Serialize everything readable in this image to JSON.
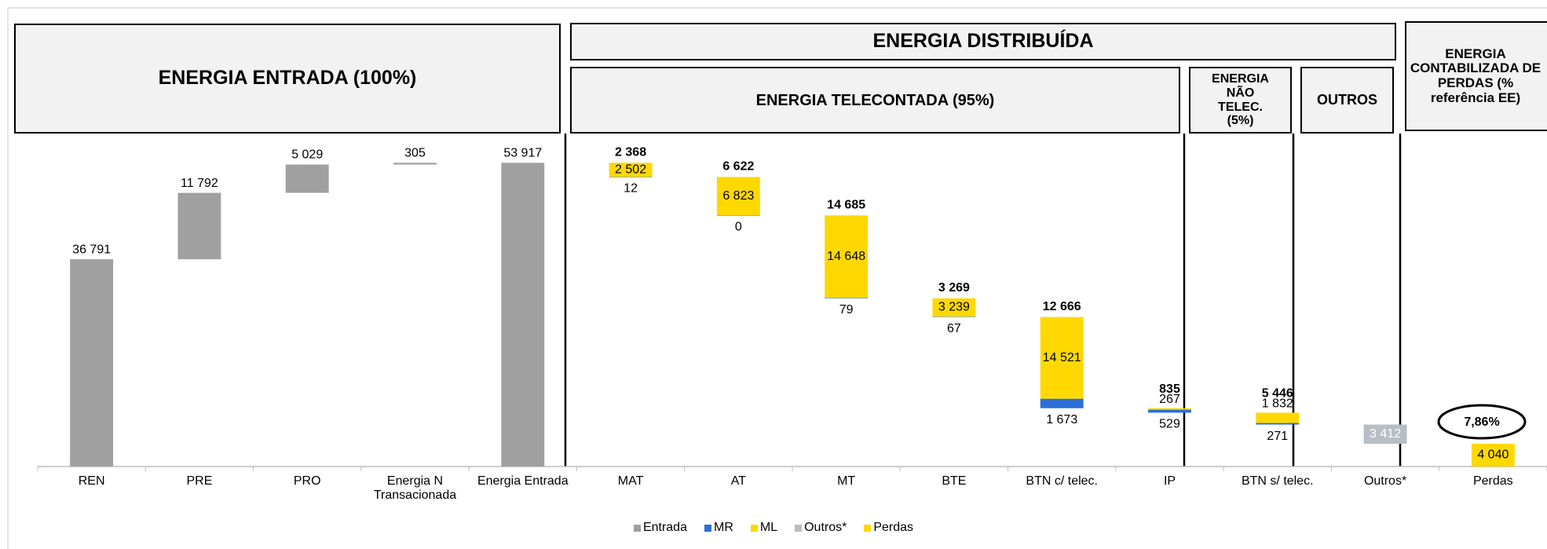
{
  "chart_data": {
    "type": "waterfall",
    "panel_titles": [
      "ENERGIA ENTRADA (100%)",
      "ENERGIA DISTRIBUÍDA",
      "ENERGIA TELECONTADA (95%)",
      "ENERGIA NÃO TELEC. (5%)",
      "OUTROS",
      "ENERGIA CONTABILIZADA DE PERDAS (% referência EE)"
    ],
    "categories": [
      "REN",
      "PRE",
      "PRO",
      "Energia N Transacionada",
      "Energia Entrada",
      "MAT",
      "AT",
      "MT",
      "BTE",
      "BTN c/ telec.",
      "IP",
      "BTN s/ telec.",
      "Outros*",
      "Perdas"
    ],
    "ylim": [
      0,
      58000
    ],
    "series": [
      {
        "name": "Entrada",
        "color": "#a0a0a0",
        "values": [
          36791,
          11792,
          5029,
          305,
          53917,
          null,
          null,
          null,
          null,
          null,
          null,
          null,
          null,
          null
        ],
        "value_labels": [
          "36 791",
          "11 792",
          "5 029",
          "305",
          "53 917",
          null,
          null,
          null,
          null,
          null,
          null,
          null,
          null,
          null
        ]
      },
      {
        "name": "MR",
        "color": "#2b6fd6",
        "values": [
          null,
          null,
          null,
          null,
          null,
          12,
          0,
          79,
          67,
          1673,
          529,
          271,
          null,
          null
        ],
        "value_labels": [
          null,
          null,
          null,
          null,
          null,
          "12",
          "0",
          "79",
          "67",
          "1 673",
          "529",
          "271",
          null,
          null
        ]
      },
      {
        "name": "ML",
        "color": "#ffd800",
        "values": [
          null,
          null,
          null,
          null,
          null,
          2502,
          6823,
          14648,
          3239,
          14521,
          267,
          1832,
          null,
          null
        ],
        "value_labels": [
          null,
          null,
          null,
          null,
          null,
          "2 502",
          "6 823",
          "14 648",
          "3 239",
          "14 521",
          "267",
          "1 832",
          null,
          null
        ]
      },
      {
        "name": "Outros*",
        "color": "#b7bec4",
        "values": [
          null,
          null,
          null,
          null,
          null,
          null,
          null,
          null,
          null,
          null,
          null,
          null,
          3412,
          null
        ],
        "value_labels": [
          null,
          null,
          null,
          null,
          null,
          null,
          null,
          null,
          null,
          null,
          null,
          null,
          "3 412",
          null
        ]
      },
      {
        "name": "Perdas",
        "color": "#ffd800",
        "values": [
          null,
          null,
          null,
          null,
          null,
          null,
          null,
          null,
          null,
          null,
          null,
          null,
          null,
          4040
        ],
        "value_labels": [
          null,
          null,
          null,
          null,
          null,
          null,
          null,
          null,
          null,
          null,
          null,
          null,
          null,
          "4 040"
        ]
      }
    ],
    "totals": {
      "values": [
        null,
        null,
        null,
        null,
        null,
        2368,
        6622,
        14685,
        3269,
        12666,
        835,
        5446,
        null,
        null
      ],
      "value_labels": [
        null,
        null,
        null,
        null,
        null,
        "2 368",
        "6 622",
        "14 685",
        "3 269",
        "12 666",
        "835",
        "5 446",
        null,
        null
      ]
    },
    "annotation": "7,86%"
  }
}
